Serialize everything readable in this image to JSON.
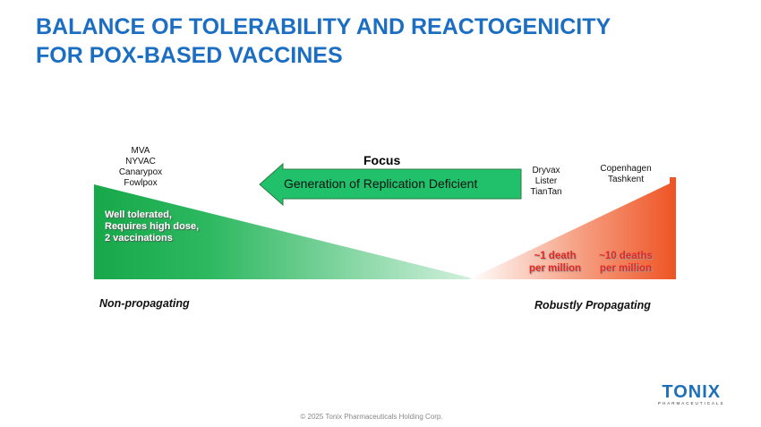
{
  "title": [
    "BALANCE OF TOLERABILITY AND REACTOGENICITY",
    "FOR POX-BASED VACCINES"
  ],
  "left_vaccines": [
    "MVA",
    "NYVAC",
    "Canarypox",
    "Fowlpox"
  ],
  "middle_vaccines": [
    "Dryvax",
    "Lister",
    "TianTan"
  ],
  "right_vaccines": [
    "Copenhagen",
    "Tashkent"
  ],
  "focus_label": "Focus",
  "arrow_label": "Generation of Replication Deficient",
  "left_description": [
    "Well tolerated,",
    "Requires high dose,",
    "2 vaccinations"
  ],
  "death_rate_middle": [
    "~1 death",
    "per million"
  ],
  "death_rate_right": [
    "~10 deaths",
    "per million"
  ],
  "axis_left": "Non-propagating",
  "axis_right": "Robustly Propagating",
  "logo_text": "TONIX",
  "logo_subtext": "PHARMACEUTICALS",
  "footer": "© 2025 Tonix Pharmaceuticals Holding Corp.",
  "colors": {
    "title": "#1b6ec2",
    "green": "#1aab4b",
    "red": "#ef5a2a",
    "death_text": "#e8261d"
  }
}
